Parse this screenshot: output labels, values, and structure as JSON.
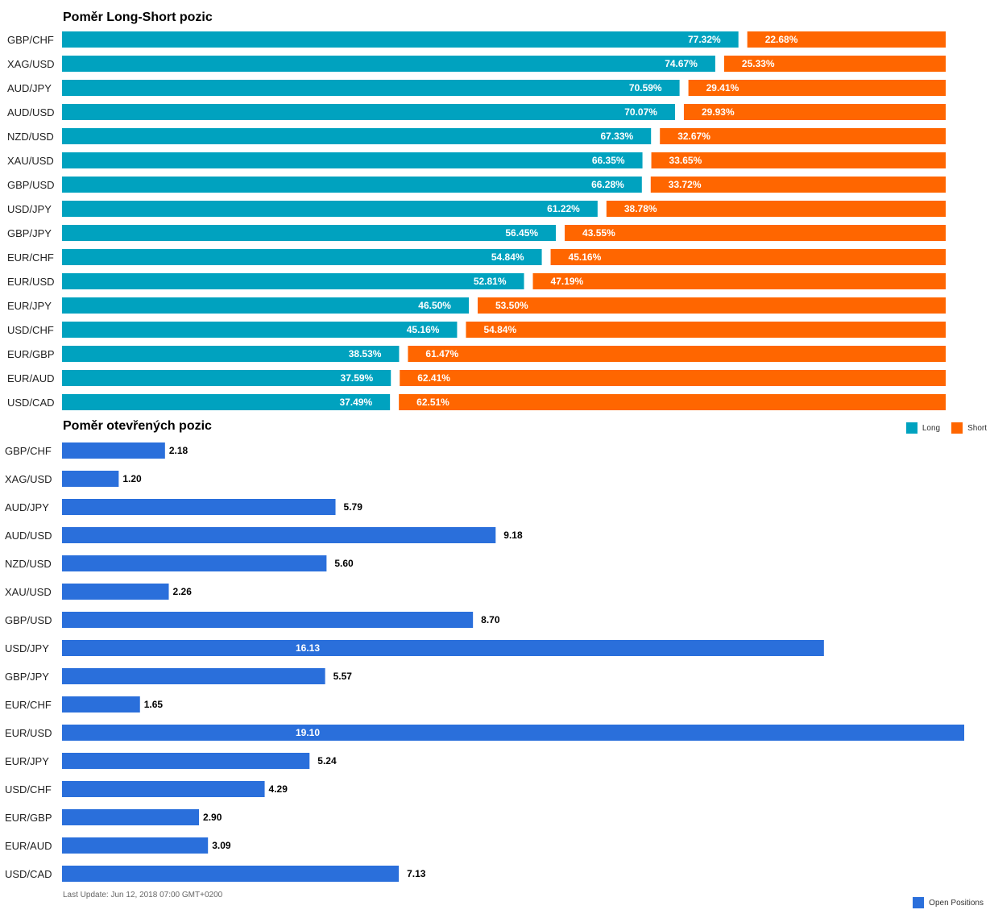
{
  "chart_data": [
    {
      "type": "bar",
      "orientation": "horizontal",
      "stacked": true,
      "title": "Poměr Long-Short pozic",
      "categories": [
        "GBP/CHF",
        "XAG/USD",
        "AUD/JPY",
        "AUD/USD",
        "NZD/USD",
        "XAU/USD",
        "GBP/USD",
        "USD/JPY",
        "GBP/JPY",
        "EUR/CHF",
        "EUR/USD",
        "EUR/JPY",
        "USD/CHF",
        "EUR/GBP",
        "EUR/AUD",
        "USD/CAD"
      ],
      "series": [
        {
          "name": "Long",
          "color": "#00a2bf",
          "values": [
            77.32,
            74.67,
            70.59,
            70.07,
            67.33,
            66.35,
            66.28,
            61.22,
            56.45,
            54.84,
            52.81,
            46.5,
            45.16,
            38.53,
            37.59,
            37.49
          ],
          "labels": [
            "77.32%",
            "74.67%",
            "70.59%",
            "70.07%",
            "67.33%",
            "66.35%",
            "66.28%",
            "61.22%",
            "56.45%",
            "54.84%",
            "52.81%",
            "46.50%",
            "45.16%",
            "38.53%",
            "37.59%",
            "37.49%"
          ]
        },
        {
          "name": "Short",
          "color": "#ff6600",
          "values": [
            22.68,
            25.33,
            29.41,
            29.93,
            32.67,
            33.65,
            33.72,
            38.78,
            43.55,
            45.16,
            47.19,
            53.5,
            54.84,
            61.47,
            62.41,
            62.51
          ],
          "labels": [
            "22.68%",
            "25.33%",
            "29.41%",
            "29.93%",
            "32.67%",
            "33.65%",
            "33.72%",
            "38.78%",
            "43.55%",
            "45.16%",
            "47.19%",
            "53.50%",
            "54.84%",
            "61.47%",
            "62.41%",
            "62.51%"
          ]
        }
      ],
      "xlim": [
        0,
        100
      ],
      "legend": "bottom-right"
    },
    {
      "type": "bar",
      "orientation": "horizontal",
      "title": "Poměr otevřených pozic",
      "categories": [
        "GBP/CHF",
        "XAG/USD",
        "AUD/JPY",
        "AUD/USD",
        "NZD/USD",
        "XAU/USD",
        "GBP/USD",
        "USD/JPY",
        "GBP/JPY",
        "EUR/CHF",
        "EUR/USD",
        "EUR/JPY",
        "USD/CHF",
        "EUR/GBP",
        "EUR/AUD",
        "USD/CAD"
      ],
      "series": [
        {
          "name": "Open Positions",
          "color": "#2a6fdb",
          "values": [
            2.18,
            1.2,
            5.79,
            9.18,
            5.6,
            2.26,
            8.7,
            16.13,
            5.57,
            1.65,
            19.1,
            5.24,
            4.29,
            2.9,
            3.09,
            7.13
          ],
          "labels": [
            "2.18",
            "1.20",
            "5.79",
            "9.18",
            "5.60",
            "2.26",
            "8.70",
            "16.13",
            "5.57",
            "1.65",
            "19.10",
            "5.24",
            "4.29",
            "2.90",
            "3.09",
            "7.13"
          ]
        }
      ],
      "xlim": [
        0,
        19.1
      ],
      "legend": "bottom-right"
    }
  ],
  "footer": {
    "last_update": "Last Update: Jun 12, 2018 07:00 GMT+0200"
  }
}
